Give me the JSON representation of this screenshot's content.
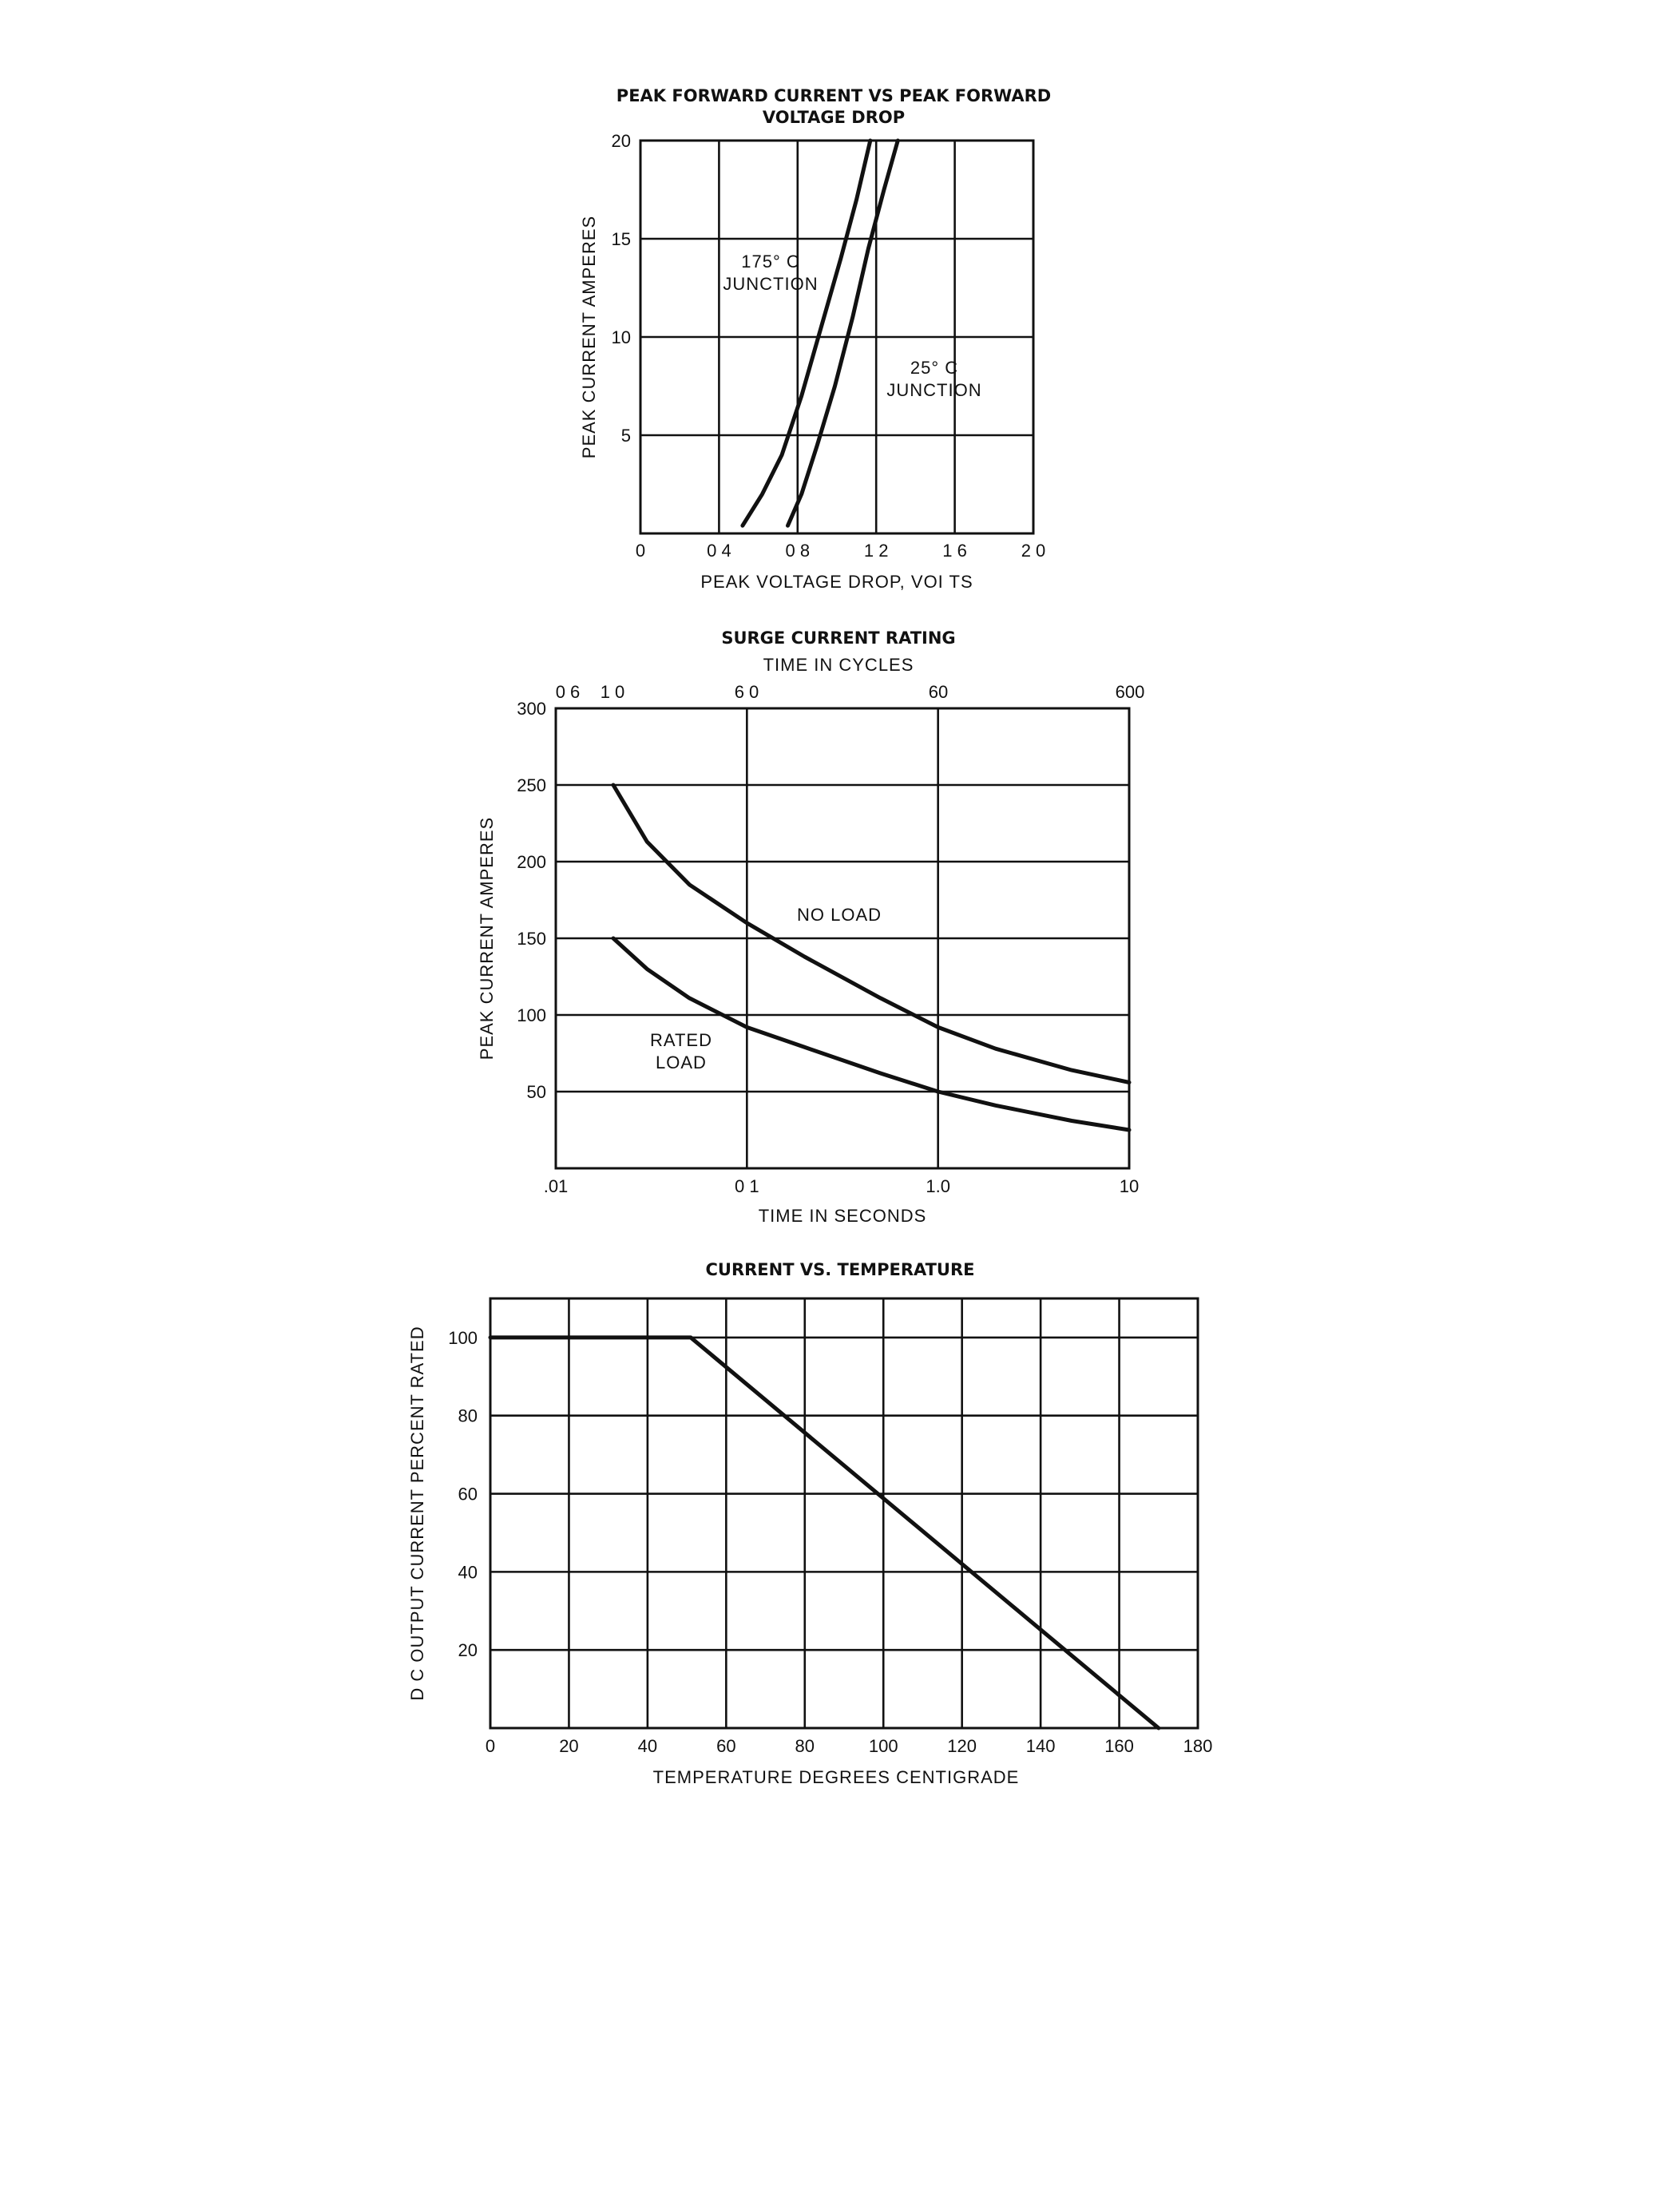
{
  "chart_data": [
    {
      "type": "line",
      "title": "PEAK FORWARD CURRENT VS PEAK FORWARD",
      "subtitle": "VOLTAGE DROP",
      "xlabel": "PEAK VOLTAGE DROP, VOI TS",
      "ylabel": "PEAK CURRENT AMPERES",
      "xlim": [
        0,
        2.0
      ],
      "ylim": [
        0,
        20
      ],
      "x_ticks": [
        0,
        0.4,
        0.8,
        1.2,
        1.6,
        2.0
      ],
      "x_tick_labels": [
        "0",
        "0 4",
        "0 8",
        "1 2",
        "1 6",
        "2 0"
      ],
      "y_ticks": [
        5,
        10,
        15,
        20
      ],
      "y_tick_labels": [
        "5",
        "10",
        "15",
        "20"
      ],
      "grid": true,
      "series": [
        {
          "name": "175° C JUNCTION",
          "x": [
            0.52,
            0.62,
            0.72,
            0.82,
            0.92,
            1.02,
            1.1,
            1.17
          ],
          "y": [
            0.4,
            2.0,
            4.0,
            7.0,
            10.5,
            14.0,
            17.0,
            20.0
          ]
        },
        {
          "name": "25° C JUNCTION",
          "x": [
            0.75,
            0.82,
            0.9,
            0.99,
            1.08,
            1.16,
            1.24,
            1.31
          ],
          "y": [
            0.4,
            2.0,
            4.5,
            7.5,
            11.0,
            14.5,
            17.5,
            20.0
          ]
        }
      ],
      "annotations": [
        {
          "lines": [
            "175° C",
            "JUNCTION"
          ]
        },
        {
          "lines": [
            "25° C",
            "JUNCTION"
          ]
        }
      ]
    },
    {
      "type": "line",
      "title": "SURGE CURRENT RATING",
      "top_axis_label": "TIME IN CYCLES",
      "top_tick_labels": [
        "0 6",
        "1 0",
        "6 0",
        "60",
        "600"
      ],
      "xlabel": "TIME IN SECONDS",
      "ylabel": "PEAK CURRENT AMPERES",
      "xscale": "log",
      "xlim": [
        0.01,
        10
      ],
      "ylim": [
        0,
        300
      ],
      "x_ticks": [
        0.01,
        0.1,
        1.0,
        10
      ],
      "x_tick_labels": [
        ".01",
        "0 1",
        "1.0",
        "10"
      ],
      "y_ticks": [
        50,
        100,
        150,
        200,
        250,
        300
      ],
      "y_tick_labels": [
        "50",
        "100",
        "150",
        "200",
        "250",
        "300"
      ],
      "grid": true,
      "series": [
        {
          "name": "NO LOAD",
          "x": [
            0.02,
            0.03,
            0.05,
            0.1,
            0.2,
            0.5,
            1.0,
            2.0,
            5.0,
            10
          ],
          "y": [
            250,
            213,
            185,
            160,
            138,
            111,
            92,
            78,
            64,
            56
          ]
        },
        {
          "name": "RATED LOAD",
          "x": [
            0.02,
            0.03,
            0.05,
            0.1,
            0.2,
            0.5,
            1.0,
            2.0,
            5.0,
            10
          ],
          "y": [
            150,
            130,
            111,
            92,
            79,
            62,
            50,
            41,
            31,
            25
          ]
        }
      ],
      "annotations": [
        {
          "lines": [
            "NO LOAD"
          ]
        },
        {
          "lines": [
            "RATED",
            "LOAD"
          ]
        }
      ]
    },
    {
      "type": "line",
      "title": "CURRENT VS. TEMPERATURE",
      "xlabel": "TEMPERATURE   DEGREES   CENTIGRADE",
      "ylabel": "D C  OUTPUT CURRENT PERCENT RATED",
      "xlim": [
        0,
        180
      ],
      "ylim": [
        0,
        110
      ],
      "x_ticks": [
        0,
        20,
        40,
        60,
        80,
        100,
        120,
        140,
        160,
        180
      ],
      "x_tick_labels": [
        "0",
        "20",
        "40",
        "60",
        "80",
        "100",
        "120",
        "140",
        "160",
        "180"
      ],
      "y_ticks": [
        20,
        40,
        60,
        80,
        100
      ],
      "y_tick_labels": [
        "20",
        "40",
        "60",
        "80",
        "100"
      ],
      "grid": true,
      "series": [
        {
          "name": "",
          "x": [
            0,
            51,
            170
          ],
          "y": [
            100,
            100,
            0
          ]
        }
      ]
    }
  ]
}
